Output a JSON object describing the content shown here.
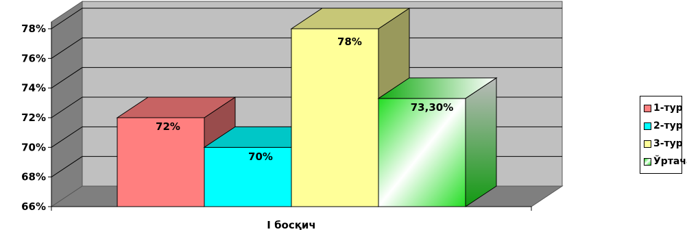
{
  "chart_data": {
    "type": "bar",
    "categories": [
      "I босқич"
    ],
    "series": [
      {
        "name": "1-тур",
        "values": [
          72
        ],
        "label": "72%",
        "color": "#ff7f7f"
      },
      {
        "name": "2-тур",
        "values": [
          70
        ],
        "label": "70%",
        "color": "#00ffff"
      },
      {
        "name": "3-тур",
        "values": [
          78
        ],
        "label": "78%",
        "color": "#ffff99"
      },
      {
        "name": "Ўртача",
        "values": [
          73.3
        ],
        "label": "73,30%",
        "color": "#22cc22"
      }
    ],
    "y_ticks": [
      "66%",
      "68%",
      "70%",
      "72%",
      "74%",
      "76%",
      "78%"
    ],
    "ylim": [
      66,
      78
    ],
    "grid": true,
    "legend_position": "right",
    "three_d": true
  }
}
